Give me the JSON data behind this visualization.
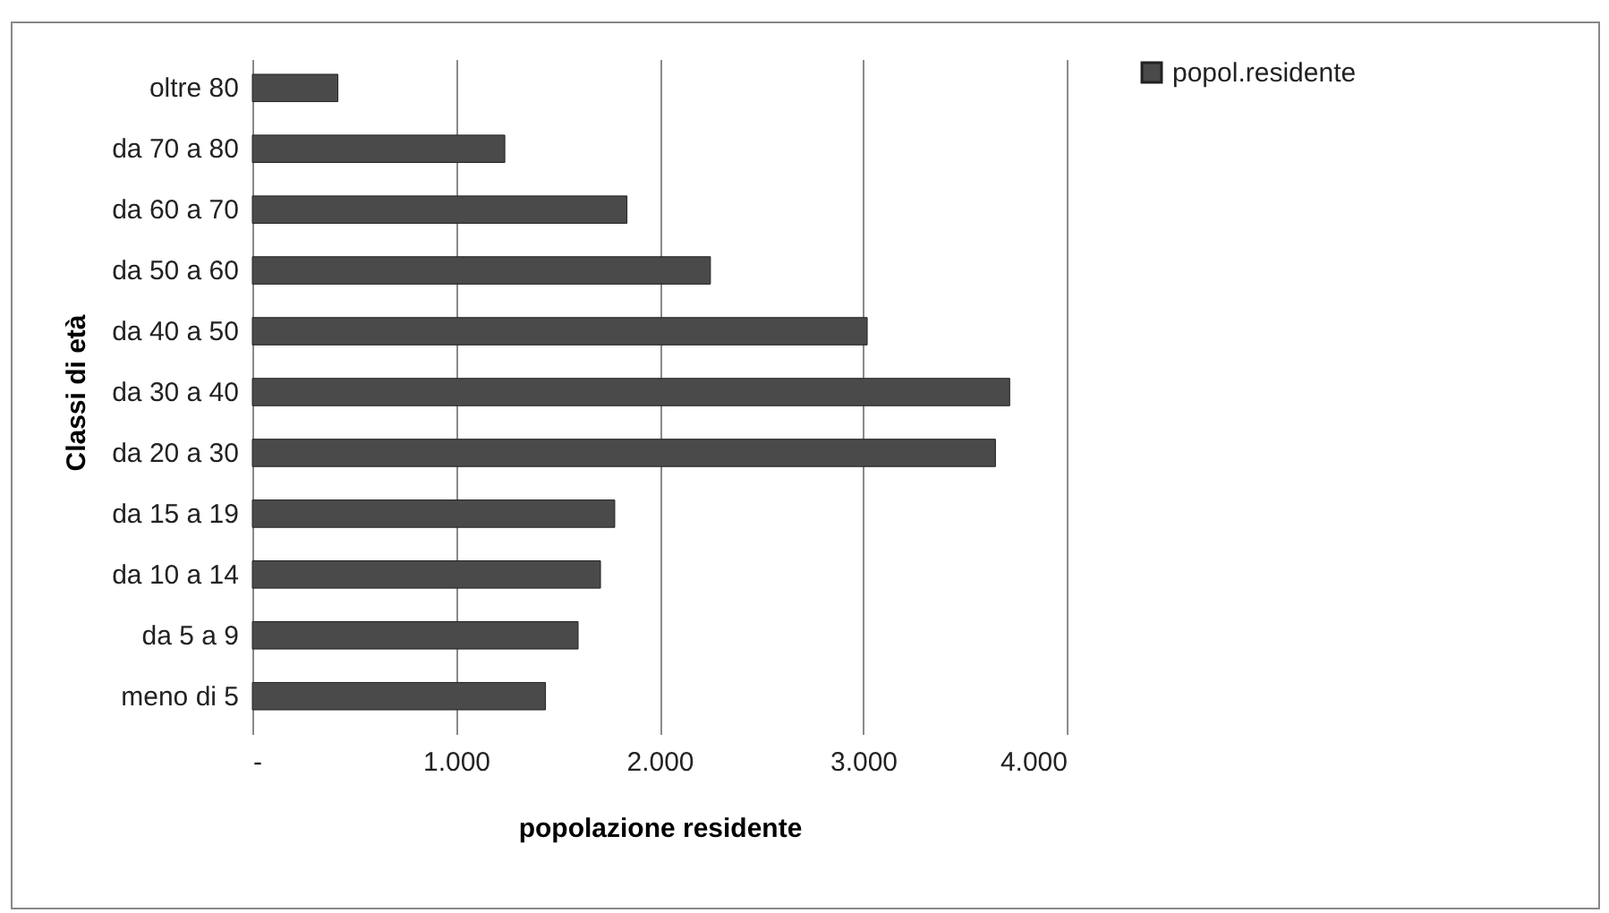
{
  "chart_data": {
    "type": "bar",
    "orientation": "horizontal",
    "xlabel": "popolazione residente",
    "ylabel": "Classi di età",
    "categories": [
      "oltre 80",
      "da 70 a 80",
      "da 60 a 70",
      "da 50 a 60",
      "da 40 a 50",
      "da 30 a 40",
      "da 20 a 30",
      "da 15 a 19",
      "da 10 a 14",
      "da 5 a 9",
      "meno di 5"
    ],
    "series": [
      {
        "name": "popol.residente",
        "color": "#4a4a4a",
        "values": [
          420,
          1240,
          1840,
          2250,
          3020,
          3720,
          3650,
          1780,
          1710,
          1600,
          1440
        ]
      }
    ],
    "xlim": [
      0,
      4000
    ],
    "xticks": [
      {
        "value": 0,
        "label": "-"
      },
      {
        "value": 1000,
        "label": "1.000"
      },
      {
        "value": 2000,
        "label": "2.000"
      },
      {
        "value": 3000,
        "label": "3.000"
      },
      {
        "value": 4000,
        "label": "4.000"
      }
    ],
    "grid": "x",
    "legend": "right"
  }
}
